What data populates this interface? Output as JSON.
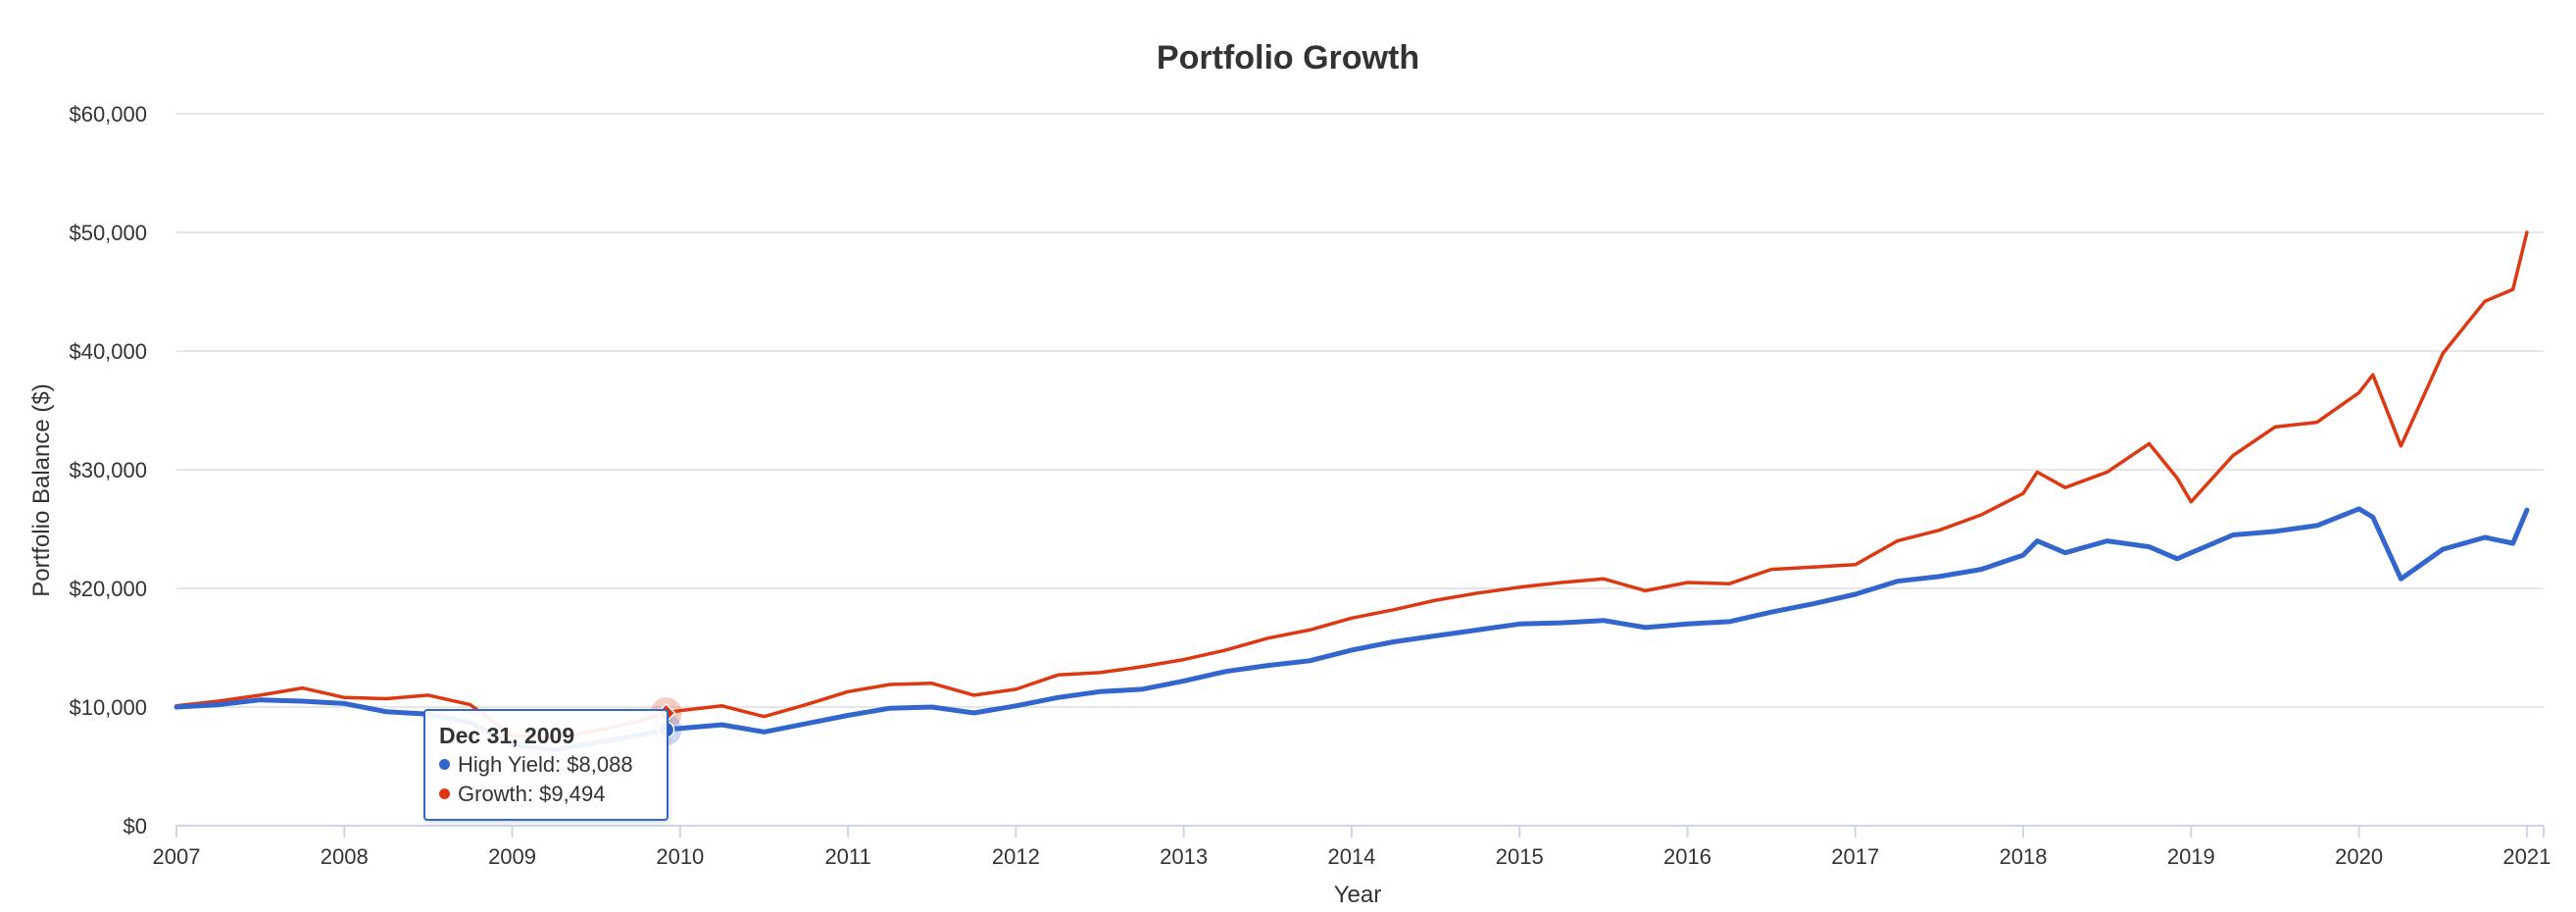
{
  "colors": {
    "high_yield": "#3366cc",
    "growth": "#dc3912",
    "grid": "#e6e6e6",
    "axis": "#ccd6eb"
  },
  "tooltip": {
    "date": "Dec 31, 2009",
    "rows": [
      {
        "label": "High Yield: $8,088",
        "color": "#3366cc"
      },
      {
        "label": "Growth: $9,494",
        "color": "#dc3912"
      }
    ]
  },
  "chart_data": {
    "type": "line",
    "title": "Portfolio Growth",
    "xlabel": "Year",
    "ylabel": "Portfolio Balance ($)",
    "xlim": [
      2007,
      2021.1
    ],
    "ylim": [
      0,
      60000
    ],
    "grid": true,
    "x_ticks": [
      "2007",
      "2008",
      "2009",
      "2010",
      "2011",
      "2012",
      "2013",
      "2014",
      "2015",
      "2016",
      "2017",
      "2018",
      "2019",
      "2020",
      "2021"
    ],
    "y_ticks": [
      "$0",
      "$10,000",
      "$20,000",
      "$30,000",
      "$40,000",
      "$50,000",
      "$60,000"
    ],
    "series": [
      {
        "name": "High Yield",
        "color": "#3366cc",
        "x": [
          2007.0,
          2007.25,
          2007.5,
          2007.75,
          2008.0,
          2008.25,
          2008.5,
          2008.75,
          2009.0,
          2009.25,
          2009.5,
          2009.75,
          2009.917,
          2010.0,
          2010.25,
          2010.5,
          2010.75,
          2011.0,
          2011.25,
          2011.5,
          2011.75,
          2012.0,
          2012.25,
          2012.5,
          2012.75,
          2013.0,
          2013.25,
          2013.5,
          2013.75,
          2014.0,
          2014.25,
          2014.5,
          2014.75,
          2015.0,
          2015.25,
          2015.5,
          2015.75,
          2016.0,
          2016.25,
          2016.5,
          2016.75,
          2017.0,
          2017.25,
          2017.5,
          2017.75,
          2018.0,
          2018.083,
          2018.25,
          2018.5,
          2018.75,
          2018.917,
          2019.0,
          2019.25,
          2019.5,
          2019.75,
          2020.0,
          2020.083,
          2020.25,
          2020.5,
          2020.75,
          2020.917,
          2021.0
        ],
        "values": [
          10000,
          10200,
          10600,
          10500,
          10300,
          9600,
          9400,
          8700,
          6800,
          6400,
          7000,
          7600,
          8088,
          8200,
          8500,
          7900,
          8600,
          9300,
          9900,
          10000,
          9500,
          10100,
          10800,
          11300,
          11500,
          12200,
          13000,
          13500,
          13900,
          14800,
          15500,
          16000,
          16500,
          17000,
          17100,
          17300,
          16700,
          17000,
          17200,
          18000,
          18700,
          19500,
          20600,
          21000,
          21600,
          22800,
          24000,
          23000,
          24000,
          23500,
          22500,
          23000,
          24500,
          24800,
          25300,
          26700,
          26000,
          20800,
          23300,
          24300,
          23800,
          26600
        ]
      },
      {
        "name": "Growth",
        "color": "#dc3912",
        "x": [
          2007.0,
          2007.25,
          2007.5,
          2007.75,
          2008.0,
          2008.25,
          2008.5,
          2008.75,
          2009.0,
          2009.25,
          2009.5,
          2009.75,
          2009.917,
          2010.0,
          2010.25,
          2010.5,
          2010.75,
          2011.0,
          2011.25,
          2011.5,
          2011.75,
          2012.0,
          2012.25,
          2012.5,
          2012.75,
          2013.0,
          2013.25,
          2013.5,
          2013.75,
          2014.0,
          2014.25,
          2014.5,
          2014.75,
          2015.0,
          2015.25,
          2015.5,
          2015.75,
          2016.0,
          2016.25,
          2016.5,
          2016.75,
          2017.0,
          2017.25,
          2017.5,
          2017.75,
          2018.0,
          2018.083,
          2018.25,
          2018.5,
          2018.75,
          2018.917,
          2019.0,
          2019.25,
          2019.5,
          2019.75,
          2020.0,
          2020.083,
          2020.25,
          2020.5,
          2020.75,
          2020.917,
          2021.0
        ],
        "values": [
          10100,
          10500,
          11000,
          11600,
          10800,
          10700,
          11000,
          10200,
          7600,
          7400,
          8000,
          8800,
          9494,
          9700,
          10100,
          9200,
          10200,
          11300,
          11900,
          12000,
          11000,
          11500,
          12700,
          12900,
          13400,
          14000,
          14800,
          15800,
          16500,
          17500,
          18200,
          19000,
          19600,
          20100,
          20500,
          20800,
          19800,
          20500,
          20400,
          21600,
          21800,
          22000,
          24000,
          24900,
          26200,
          28000,
          29800,
          28500,
          29800,
          32200,
          29300,
          27300,
          31200,
          33600,
          34000,
          36500,
          38000,
          32000,
          39800,
          44200,
          45200,
          50000
        ]
      }
    ],
    "highlight": {
      "x": 2009.917,
      "high_yield": 8088,
      "growth": 9494
    }
  }
}
